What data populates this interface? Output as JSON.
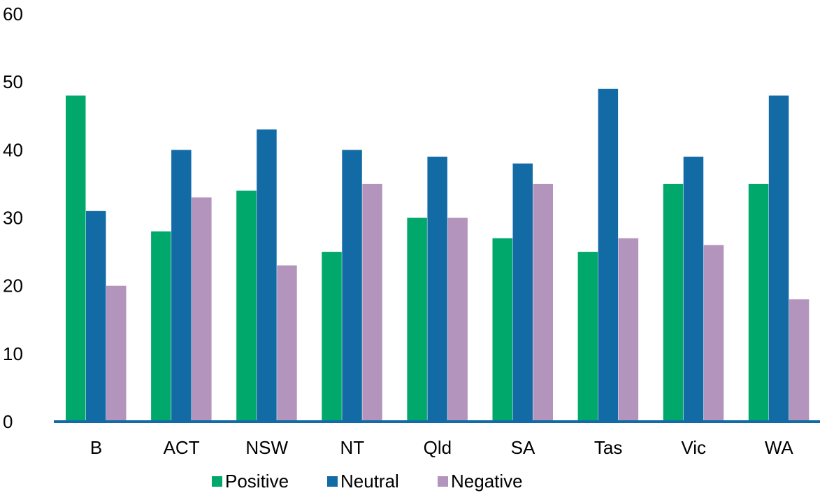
{
  "chart_data": {
    "type": "bar",
    "title": "",
    "xlabel": "",
    "ylabel": "",
    "categories": [
      "B",
      "ACT",
      "NSW",
      "NT",
      "Qld",
      "SA",
      "Tas",
      "Vic",
      "WA"
    ],
    "series": [
      {
        "name": "Positive",
        "color": "#00a86b",
        "values": [
          48,
          28,
          34,
          25,
          30,
          27,
          25,
          35,
          35
        ]
      },
      {
        "name": "Neutral",
        "color": "#136ba6",
        "values": [
          31,
          40,
          43,
          40,
          39,
          38,
          49,
          39,
          48
        ]
      },
      {
        "name": "Negative",
        "color": "#b394bd",
        "values": [
          20,
          33,
          23,
          35,
          30,
          35,
          27,
          26,
          18
        ]
      }
    ],
    "ylim": [
      0,
      60
    ],
    "yticks": [
      0,
      10,
      20,
      30,
      40,
      50,
      60
    ],
    "grid": false,
    "legend_position": "bottom"
  },
  "colors": {
    "axis": "#136ba6"
  }
}
